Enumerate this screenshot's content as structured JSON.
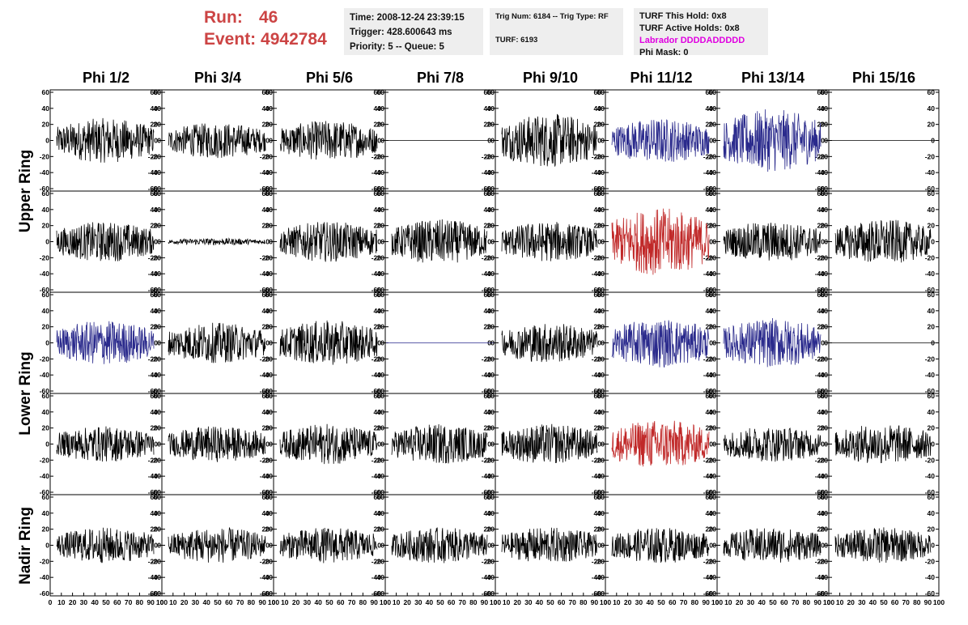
{
  "run_label": "Run:",
  "run_value": "46",
  "event_label": "Event:",
  "event_value": "4942784",
  "info": {
    "time": "Time: 2008-12-24 23:39:15",
    "trigger": "Trigger: 428.600643 ms",
    "priority": "Priority: 5 -- Queue: 5",
    "trig_num": "Trig Num: 6184 -- Trig Type: RF",
    "turf": "TURF: 6193",
    "turf_this_hold": "TURF This Hold: 0x8",
    "turf_active_holds": "TURF Active Holds: 0x8",
    "labrador": "Labrador DDDDADDDDD",
    "phi_mask": "Phi Mask: 0"
  },
  "columns": [
    "Phi 1/2",
    "Phi 3/4",
    "Phi 5/6",
    "Phi 7/8",
    "Phi 9/10",
    "Phi 11/12",
    "Phi 13/14",
    "Phi 15/16"
  ],
  "rings": [
    "Upper Ring",
    "Lower Ring",
    "Nadir Ring"
  ],
  "colors": {
    "black": "#000000",
    "blue": "#2a2a8c",
    "red": "#c02828",
    "title_red": "#cc4444",
    "magenta": "#e000e0"
  },
  "chart_data": {
    "type": "line",
    "description_grid": "5 rows x 8 columns of waveform panels",
    "x_ticks": [
      "0",
      "10",
      "20",
      "30",
      "40",
      "50",
      "60",
      "70",
      "80",
      "90",
      "100"
    ],
    "xlim": [
      0,
      100
    ],
    "y_ticks_left": [
      "60",
      "40",
      "20",
      "0",
      "-20",
      "-40",
      "-60"
    ],
    "y_ticks_right": [
      "60",
      "40",
      "20",
      "0",
      "-20",
      "-40",
      "-60"
    ],
    "ylim": [
      -60,
      60
    ],
    "panels": [
      [
        "black",
        "black",
        "black",
        "flat-black",
        "black",
        "blue",
        "blue",
        "flat-black"
      ],
      [
        "black",
        "quiet-black",
        "black",
        "black",
        "black",
        "red",
        "black",
        "black"
      ],
      [
        "blue",
        "black",
        "black",
        "flat-blue",
        "black",
        "blue",
        "blue",
        "flat-black"
      ],
      [
        "black",
        "black",
        "black",
        "black",
        "black",
        "red",
        "black",
        "black"
      ],
      [
        "black",
        "black",
        "black",
        "black",
        "black",
        "black",
        "black",
        "black"
      ]
    ],
    "amplitudes": [
      [
        20,
        16,
        18,
        0,
        24,
        20,
        28,
        0
      ],
      [
        18,
        3,
        18,
        20,
        18,
        30,
        18,
        20
      ],
      [
        20,
        18,
        20,
        0,
        18,
        22,
        22,
        0
      ],
      [
        16,
        16,
        18,
        18,
        18,
        22,
        16,
        18
      ],
      [
        16,
        16,
        16,
        16,
        16,
        16,
        16,
        16
      ]
    ]
  }
}
